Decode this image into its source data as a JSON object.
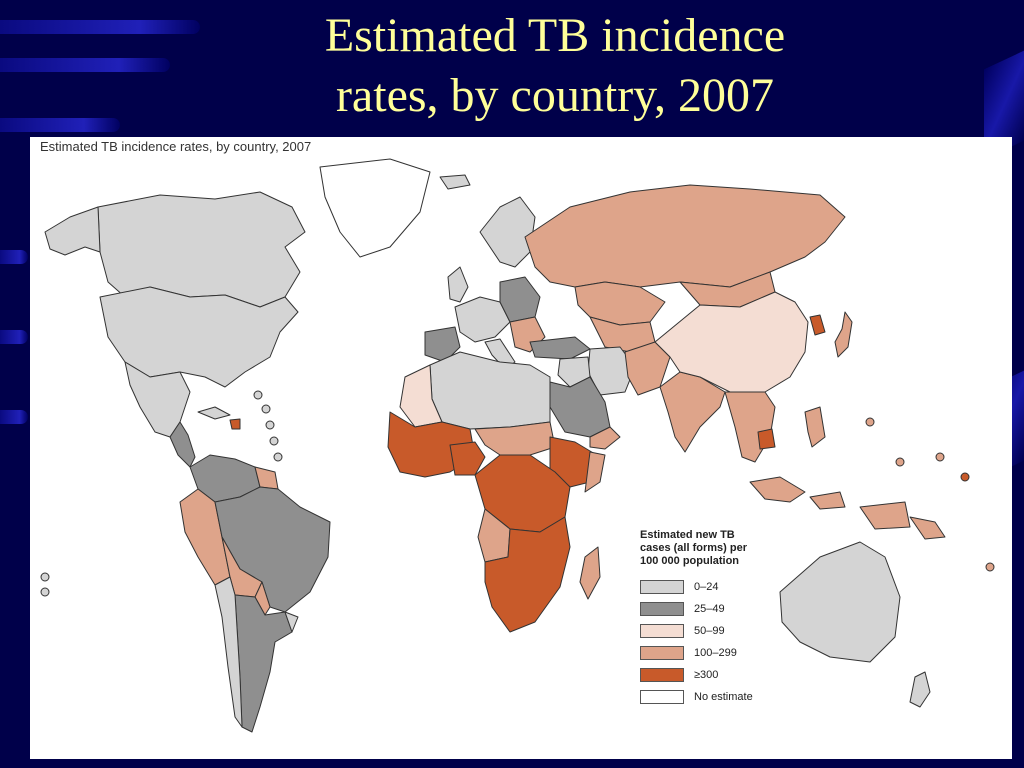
{
  "slide_title_line1": "Estimated TB incidence",
  "slide_title_line2": "rates, by country, 2007",
  "map_caption": "Estimated TB incidence rates, by country, 2007",
  "legend": {
    "title_line1": "Estimated new TB",
    "title_line2": "cases (all forms) per",
    "title_line3": "100 000 population",
    "classes": [
      {
        "label": "0–24",
        "color": "#d4d4d4"
      },
      {
        "label": "25–49",
        "color": "#8f8f8f"
      },
      {
        "label": "50–99",
        "color": "#f4ddd3"
      },
      {
        "label": "100–299",
        "color": "#dea48a"
      },
      {
        "label": "≥300",
        "color": "#c85a2a"
      },
      {
        "label": "No estimate",
        "color": "#ffffff"
      }
    ]
  },
  "colors": {
    "background": "#00004a",
    "title": "#ffff99",
    "border": "#333333"
  }
}
